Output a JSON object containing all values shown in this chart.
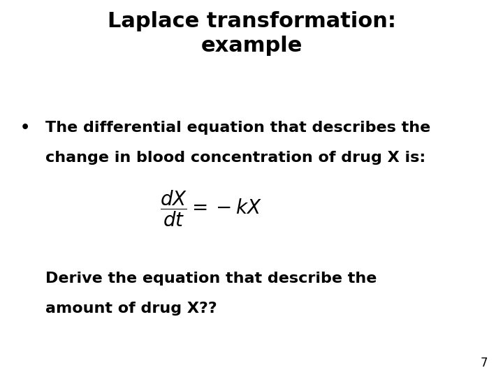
{
  "title": "Laplace transformation:\nexample",
  "bullet_text_1": "The differential equation that describes the",
  "bullet_text_2": "change in blood concentration of drug X is:",
  "equation": "$\\dfrac{dX}{dt} = -kX$",
  "derive_text_1": "Derive the equation that describe the",
  "derive_text_2": "amount of drug X??",
  "page_number": "7",
  "bg_color": "#ffffff",
  "text_color": "#000000",
  "title_fontsize": 22,
  "body_fontsize": 16,
  "equation_fontsize": 20,
  "page_num_fontsize": 12
}
